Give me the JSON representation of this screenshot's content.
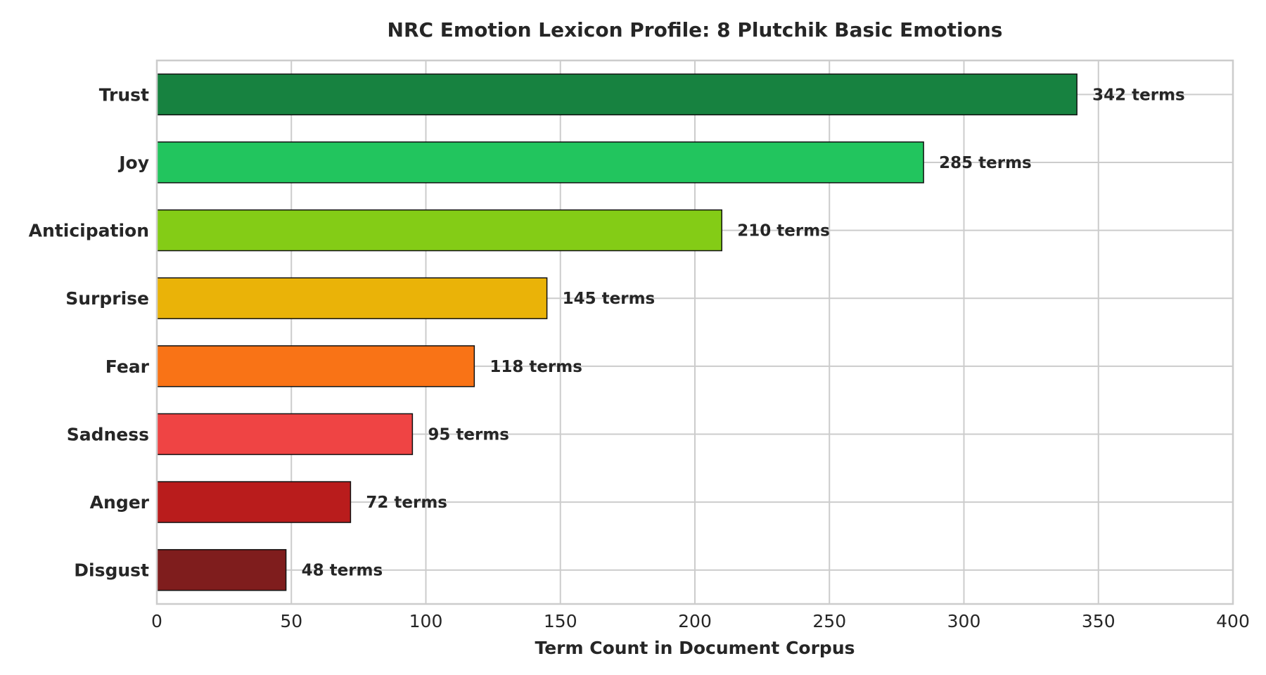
{
  "chart_data": {
    "type": "bar",
    "orientation": "horizontal",
    "title": "NRC Emotion Lexicon Profile: 8 Plutchik Basic Emotions",
    "xlabel": "Term Count in Document Corpus",
    "ylabel": "",
    "xlim": [
      0,
      400
    ],
    "xticks": [
      0,
      50,
      100,
      150,
      200,
      250,
      300,
      350,
      400
    ],
    "grid": true,
    "categories": [
      "Trust",
      "Joy",
      "Anticipation",
      "Surprise",
      "Fear",
      "Sadness",
      "Anger",
      "Disgust"
    ],
    "values": [
      342,
      285,
      210,
      145,
      118,
      95,
      72,
      48
    ],
    "data_labels": [
      "342 terms",
      "285 terms",
      "210 terms",
      "145 terms",
      "118 terms",
      "95 terms",
      "72 terms",
      "48 terms"
    ],
    "colors": [
      "#178240",
      "#22c55e",
      "#84cc16",
      "#eab308",
      "#f97316",
      "#ef4444",
      "#b91c1c",
      "#7f1d1d"
    ]
  }
}
